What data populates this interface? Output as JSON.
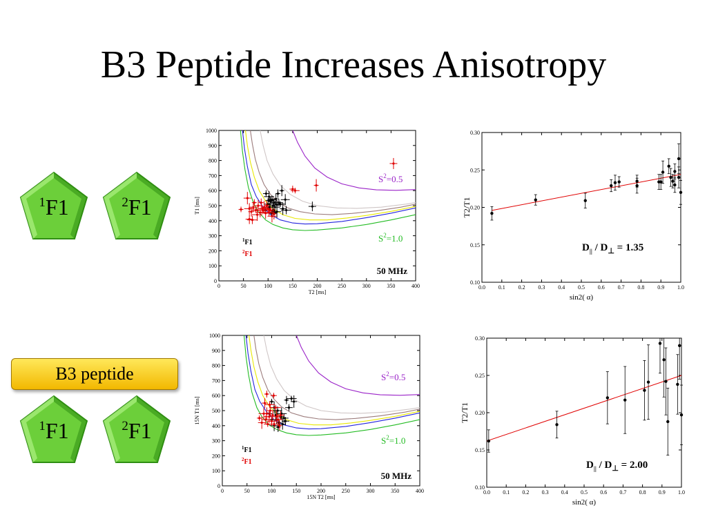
{
  "title": "B3 Peptide Increases Anisotropy",
  "colors": {
    "pent_light": "#8ee25a",
    "pent_dark": "#2f8e12",
    "badge": "#f5c400"
  },
  "groups": [
    {
      "pentagons": [
        {
          "sup": "1",
          "text": "F1"
        },
        {
          "sup": "2",
          "text": "F1"
        }
      ]
    },
    {
      "badge": "B3 peptide",
      "pentagons": [
        {
          "sup": "1",
          "text": "F1"
        },
        {
          "sup": "2",
          "text": "F1"
        }
      ]
    }
  ],
  "chart_data": [
    {
      "type": "scatter",
      "xlabel": "T2 [ms]",
      "ylabel": "T1 [ms]",
      "xlim": [
        0,
        400
      ],
      "ylim": [
        0,
        1000
      ],
      "xticks": [
        0,
        50,
        100,
        150,
        200,
        250,
        300,
        350,
        400
      ],
      "yticks": [
        0,
        100,
        200,
        300,
        400,
        500,
        600,
        700,
        800,
        900,
        1000
      ],
      "curve_labels": {
        "top": {
          "base": "S",
          "sup": "2",
          "rest": "=0.5"
        },
        "bottom": {
          "base": "S",
          "sup": "2",
          "rest": "=1.0"
        }
      },
      "annotation": "50 MHz",
      "legend": [
        {
          "sup": "1",
          "text": "F1",
          "color": "#000000"
        },
        {
          "sup": "2",
          "text": "F1",
          "color": "#e00000"
        }
      ],
      "curves": [
        {
          "color": "#22bb22",
          "x": [
            44,
            48,
            53,
            60,
            70,
            80,
            95,
            110,
            130,
            150,
            175,
            200,
            250,
            300,
            350,
            400
          ],
          "y": [
            1000,
            860,
            740,
            620,
            520,
            460,
            405,
            375,
            352,
            340,
            335,
            338,
            352,
            375,
            405,
            440
          ]
        },
        {
          "color": "#2222dd",
          "x": [
            48,
            52,
            58,
            66,
            76,
            90,
            105,
            125,
            150,
            175,
            200,
            250,
            300,
            350,
            400
          ],
          "y": [
            1000,
            880,
            760,
            640,
            560,
            490,
            440,
            405,
            385,
            378,
            380,
            395,
            420,
            450,
            485
          ]
        },
        {
          "color": "#e8e800",
          "x": [
            54,
            58,
            64,
            72,
            82,
            95,
            110,
            130,
            155,
            185,
            220,
            260,
            300,
            350,
            400
          ],
          "y": [
            1000,
            900,
            790,
            690,
            600,
            530,
            480,
            440,
            415,
            405,
            405,
            418,
            435,
            462,
            495
          ]
        },
        {
          "color": "#9b7b7b",
          "x": [
            64,
            68,
            74,
            82,
            92,
            105,
            120,
            140,
            165,
            195,
            230,
            270,
            320,
            370,
            400
          ],
          "y": [
            1000,
            910,
            810,
            720,
            640,
            575,
            525,
            485,
            460,
            445,
            440,
            448,
            465,
            490,
            510
          ]
        },
        {
          "color": "#cfc6c6",
          "x": [
            84,
            90,
            98,
            110,
            125,
            145,
            170,
            200,
            240,
            280,
            330,
            380,
            400
          ],
          "y": [
            1000,
            900,
            800,
            710,
            635,
            575,
            530,
            500,
            485,
            482,
            490,
            510,
            520
          ]
        },
        {
          "color": "#9a22c8",
          "x": [
            150,
            160,
            175,
            195,
            220,
            250,
            285,
            320,
            360,
            400
          ],
          "y": [
            1000,
            920,
            830,
            750,
            690,
            645,
            618,
            605,
            602,
            607
          ]
        }
      ],
      "series": [
        {
          "name": "1F1",
          "color": "#000000",
          "points": [
            [
              95,
              470
            ],
            [
              100,
              510
            ],
            [
              102,
              560
            ],
            [
              105,
              530
            ],
            [
              108,
              540
            ],
            [
              110,
              500
            ],
            [
              112,
              520
            ],
            [
              114,
              490
            ],
            [
              116,
              545
            ],
            [
              118,
              505
            ],
            [
              120,
              580
            ],
            [
              122,
              520
            ],
            [
              125,
              510
            ],
            [
              130,
              480
            ],
            [
              135,
              540
            ],
            [
              110,
              470
            ],
            [
              103,
              490
            ],
            [
              107,
              450
            ],
            [
              113,
              455
            ],
            [
              118,
              460
            ],
            [
              128,
              600
            ],
            [
              190,
              495
            ],
            [
              137,
              470
            ],
            [
              96,
              580
            ],
            [
              104,
              535
            ]
          ]
        },
        {
          "name": "2F1",
          "color": "#e00000",
          "points": [
            [
              45,
              475
            ],
            [
              58,
              550
            ],
            [
              62,
              480
            ],
            [
              66,
              460
            ],
            [
              70,
              490
            ],
            [
              72,
              520
            ],
            [
              75,
              470
            ],
            [
              78,
              440
            ],
            [
              80,
              500
            ],
            [
              84,
              455
            ],
            [
              86,
              520
            ],
            [
              88,
              480
            ],
            [
              90,
              470
            ],
            [
              92,
              490
            ],
            [
              95,
              450
            ],
            [
              97,
              500
            ],
            [
              100,
              480
            ],
            [
              102,
              455
            ],
            [
              105,
              470
            ],
            [
              108,
              430
            ],
            [
              112,
              445
            ],
            [
              62,
              410
            ],
            [
              68,
              405
            ],
            [
              150,
              610
            ],
            [
              155,
              600
            ],
            [
              198,
              635
            ],
            [
              355,
              780
            ]
          ]
        }
      ]
    },
    {
      "type": "scatter",
      "xlabel": "sin2( α)",
      "ylabel": "T2/T1",
      "xlim": [
        0,
        1
      ],
      "ylim": [
        0.1,
        0.3
      ],
      "xticks": [
        0.0,
        0.1,
        0.2,
        0.3,
        0.4,
        0.5,
        0.6,
        0.7,
        0.8,
        0.9,
        1.0
      ],
      "yticks": [
        0.1,
        0.15,
        0.2,
        0.25,
        0.3
      ],
      "fit_line": [
        [
          0.05,
          0.196
        ],
        [
          1.0,
          0.244
        ]
      ],
      "ratio_label": {
        "a": "D",
        "a_sub": "||",
        "b": "D",
        "b_sub": "⊥",
        "value": "= 1.35"
      },
      "points": [
        [
          0.05,
          0.192,
          0.009
        ],
        [
          0.27,
          0.21,
          0.007
        ],
        [
          0.52,
          0.209,
          0.01
        ],
        [
          0.65,
          0.229,
          0.008
        ],
        [
          0.67,
          0.233,
          0.01
        ],
        [
          0.69,
          0.234,
          0.007
        ],
        [
          0.78,
          0.229,
          0.01
        ],
        [
          0.78,
          0.235,
          0.008
        ],
        [
          0.89,
          0.234,
          0.01
        ],
        [
          0.91,
          0.247,
          0.015
        ],
        [
          0.9,
          0.234,
          0.01
        ],
        [
          0.94,
          0.255,
          0.01
        ],
        [
          0.95,
          0.24,
          0.012
        ],
        [
          0.96,
          0.235,
          0.009
        ],
        [
          0.97,
          0.248,
          0.01
        ],
        [
          0.97,
          0.23,
          0.01
        ],
        [
          0.99,
          0.265,
          0.02
        ],
        [
          0.99,
          0.24,
          0.014
        ],
        [
          1.0,
          0.22,
          0.016
        ]
      ]
    },
    {
      "type": "scatter",
      "xlabel": "15N T2 [ms]",
      "ylabel": "15N T1 [ms]",
      "xlim": [
        0,
        400
      ],
      "ylim": [
        0,
        1000
      ],
      "xticks": [
        0,
        50,
        100,
        150,
        200,
        250,
        300,
        350,
        400
      ],
      "yticks": [
        0,
        100,
        200,
        300,
        400,
        500,
        600,
        700,
        800,
        900,
        1000
      ],
      "curve_labels": {
        "top": {
          "base": "S",
          "sup": "2",
          "rest": "=0.5"
        },
        "bottom": {
          "base": "S",
          "sup": "2",
          "rest": "=1.0"
        }
      },
      "annotation": "50 MHz",
      "legend": [
        {
          "sup": "1",
          "text": "F1",
          "color": "#000000"
        },
        {
          "sup": "2",
          "text": "F1",
          "color": "#e00000"
        }
      ],
      "curves": [
        {
          "color": "#22bb22",
          "x": [
            44,
            48,
            53,
            60,
            70,
            80,
            95,
            110,
            130,
            150,
            175,
            200,
            250,
            300,
            350,
            400
          ],
          "y": [
            1000,
            860,
            740,
            620,
            520,
            460,
            405,
            375,
            352,
            340,
            335,
            338,
            352,
            375,
            405,
            440
          ]
        },
        {
          "color": "#2222dd",
          "x": [
            48,
            52,
            58,
            66,
            76,
            90,
            105,
            125,
            150,
            175,
            200,
            250,
            300,
            350,
            400
          ],
          "y": [
            1000,
            880,
            760,
            640,
            560,
            490,
            440,
            405,
            385,
            378,
            380,
            395,
            420,
            450,
            485
          ]
        },
        {
          "color": "#e8e800",
          "x": [
            54,
            58,
            64,
            72,
            82,
            95,
            110,
            130,
            155,
            185,
            220,
            260,
            300,
            350,
            400
          ],
          "y": [
            1000,
            900,
            790,
            690,
            600,
            530,
            480,
            440,
            415,
            405,
            405,
            418,
            435,
            462,
            495
          ]
        },
        {
          "color": "#9b7b7b",
          "x": [
            64,
            68,
            74,
            82,
            92,
            105,
            120,
            140,
            165,
            195,
            230,
            270,
            320,
            370,
            400
          ],
          "y": [
            1000,
            910,
            810,
            720,
            640,
            575,
            525,
            485,
            460,
            445,
            440,
            448,
            465,
            490,
            510
          ]
        },
        {
          "color": "#cfc6c6",
          "x": [
            84,
            90,
            98,
            110,
            125,
            145,
            170,
            200,
            240,
            280,
            330,
            380,
            400
          ],
          "y": [
            1000,
            900,
            800,
            710,
            635,
            575,
            530,
            500,
            485,
            482,
            490,
            510,
            520
          ]
        },
        {
          "color": "#9a22c8",
          "x": [
            150,
            160,
            175,
            195,
            220,
            250,
            285,
            320,
            360,
            400
          ],
          "y": [
            1000,
            920,
            830,
            750,
            690,
            645,
            618,
            605,
            602,
            607
          ]
        }
      ],
      "series": [
        {
          "name": "1F1",
          "color": "#000000",
          "points": [
            [
              100,
              560
            ],
            [
              105,
              520
            ],
            [
              108,
              470
            ],
            [
              110,
              440
            ],
            [
              112,
              500
            ],
            [
              115,
              420
            ],
            [
              118,
              460
            ],
            [
              120,
              480
            ],
            [
              122,
              410
            ],
            [
              125,
              450
            ],
            [
              130,
              570
            ],
            [
              135,
              520
            ],
            [
              140,
              580
            ],
            [
              145,
              560
            ],
            [
              105,
              400
            ],
            [
              113,
              390
            ],
            [
              128,
              430
            ],
            [
              100,
              440
            ],
            [
              95,
              480
            ]
          ]
        },
        {
          "name": "2F1",
          "color": "#e00000",
          "points": [
            [
              75,
              450
            ],
            [
              80,
              420
            ],
            [
              84,
              480
            ],
            [
              86,
              550
            ],
            [
              88,
              440
            ],
            [
              90,
              610
            ],
            [
              92,
              410
            ],
            [
              95,
              460
            ],
            [
              97,
              500
            ],
            [
              100,
              430
            ],
            [
              102,
              470
            ],
            [
              105,
              410
            ],
            [
              108,
              520
            ],
            [
              110,
              460
            ],
            [
              113,
              440
            ],
            [
              116,
              400
            ],
            [
              118,
              470
            ],
            [
              96,
              540
            ],
            [
              104,
              600
            ],
            [
              90,
              480
            ]
          ]
        }
      ]
    },
    {
      "type": "scatter",
      "xlabel": "sin2( α)",
      "ylabel": "T2/T1",
      "xlim": [
        0,
        1
      ],
      "ylim": [
        0.1,
        0.3
      ],
      "xticks": [
        0.0,
        0.1,
        0.2,
        0.3,
        0.4,
        0.5,
        0.6,
        0.7,
        0.8,
        0.9,
        1.0
      ],
      "yticks": [
        0.1,
        0.15,
        0.2,
        0.25,
        0.3
      ],
      "fit_line": [
        [
          0.0,
          0.162
        ],
        [
          1.0,
          0.25
        ]
      ],
      "ratio_label": {
        "a": "D",
        "a_sub": "||",
        "b": "D",
        "b_sub": "⊥",
        "value": "= 2.00"
      },
      "points": [
        [
          0.01,
          0.162,
          0.015
        ],
        [
          0.36,
          0.184,
          0.018
        ],
        [
          0.62,
          0.22,
          0.035
        ],
        [
          0.71,
          0.217,
          0.045
        ],
        [
          0.81,
          0.23,
          0.04
        ],
        [
          0.83,
          0.241,
          0.05
        ],
        [
          0.89,
          0.293,
          0.04
        ],
        [
          0.91,
          0.271,
          0.05
        ],
        [
          0.92,
          0.242,
          0.045
        ],
        [
          0.93,
          0.188,
          0.045
        ],
        [
          0.98,
          0.238,
          0.04
        ],
        [
          0.99,
          0.29,
          0.045
        ],
        [
          1.0,
          0.197,
          0.04
        ]
      ]
    }
  ]
}
